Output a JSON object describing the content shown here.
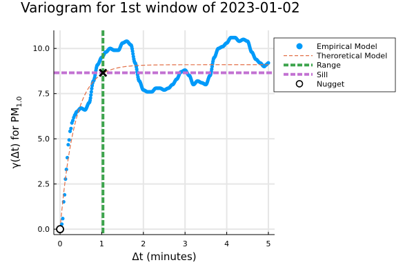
{
  "chart_data": {
    "type": "scatter",
    "title": "Variogram for 1st window of 2023-01-02",
    "xlabel": "Δt (minutes)",
    "ylabel_main": "γ(Δt) for PM",
    "ylabel_sub": "1.0",
    "xlim": [
      -0.15,
      5.15
    ],
    "ylim": [
      -0.3,
      11.0
    ],
    "xticks": [
      0,
      1,
      2,
      3,
      4,
      5
    ],
    "xtick_labels": [
      "0",
      "1",
      "2",
      "3",
      "4",
      "5"
    ],
    "yticks": [
      0.0,
      2.5,
      5.0,
      7.5,
      10.0
    ],
    "ytick_labels": [
      "0.0",
      "2.5",
      "5.0",
      "7.5",
      "10.0"
    ],
    "grid": true,
    "legend_position": "top-right outside",
    "colors": {
      "empirical": "#009af9",
      "theoretical": "#e26f46",
      "range": "#3da44d",
      "sill": "#c271d2",
      "nugget_edge": "#000000",
      "grid": "#e6e6e6",
      "axis": "#000000"
    },
    "empirical_anchors": [
      [
        0.0,
        0.0
      ],
      [
        0.05,
        0.3
      ],
      [
        0.1,
        1.8
      ],
      [
        0.15,
        3.3
      ],
      [
        0.2,
        4.7
      ],
      [
        0.25,
        5.5
      ],
      [
        0.3,
        6.0
      ],
      [
        0.35,
        6.3
      ],
      [
        0.4,
        6.5
      ],
      [
        0.5,
        6.7
      ],
      [
        0.6,
        6.6
      ],
      [
        0.7,
        7.0
      ],
      [
        0.8,
        8.2
      ],
      [
        0.9,
        9.1
      ],
      [
        1.0,
        9.5
      ],
      [
        1.1,
        9.8
      ],
      [
        1.2,
        10.0
      ],
      [
        1.3,
        9.9
      ],
      [
        1.4,
        9.9
      ],
      [
        1.5,
        10.3
      ],
      [
        1.6,
        10.4
      ],
      [
        1.7,
        10.2
      ],
      [
        1.8,
        9.2
      ],
      [
        1.9,
        8.2
      ],
      [
        2.0,
        7.7
      ],
      [
        2.1,
        7.6
      ],
      [
        2.2,
        7.6
      ],
      [
        2.3,
        7.8
      ],
      [
        2.4,
        7.8
      ],
      [
        2.5,
        7.7
      ],
      [
        2.6,
        7.8
      ],
      [
        2.7,
        8.0
      ],
      [
        2.8,
        8.3
      ],
      [
        2.9,
        8.7
      ],
      [
        3.0,
        8.8
      ],
      [
        3.1,
        8.5
      ],
      [
        3.2,
        8.0
      ],
      [
        3.3,
        8.2
      ],
      [
        3.4,
        8.1
      ],
      [
        3.5,
        8.0
      ],
      [
        3.6,
        8.5
      ],
      [
        3.7,
        9.5
      ],
      [
        3.8,
        10.0
      ],
      [
        3.9,
        10.1
      ],
      [
        4.0,
        10.3
      ],
      [
        4.1,
        10.6
      ],
      [
        4.2,
        10.6
      ],
      [
        4.3,
        10.4
      ],
      [
        4.4,
        10.5
      ],
      [
        4.5,
        10.4
      ],
      [
        4.6,
        9.8
      ],
      [
        4.7,
        9.4
      ],
      [
        4.8,
        9.2
      ],
      [
        4.9,
        9.0
      ],
      [
        4.95,
        9.1
      ],
      [
        5.0,
        9.2
      ]
    ],
    "theoretical_model": {
      "sill": 9.1,
      "scale": 0.35,
      "x_range": [
        0,
        5
      ]
    },
    "range_x": 1.03,
    "sill_y": 8.65,
    "nugget": [
      0,
      0
    ],
    "range_marker": [
      1.03,
      8.65
    ],
    "legend": [
      {
        "label": "Empirical Model",
        "key": "empirical",
        "symbol": "dot"
      },
      {
        "label": "Theroretical Model",
        "key": "theoretical",
        "symbol": "dash"
      },
      {
        "label": " Range",
        "key": "range",
        "symbol": "thickdash"
      },
      {
        "label": "Sill",
        "key": "sill",
        "symbol": "thickdash"
      },
      {
        "label": "Nugget",
        "key": "nugget_edge",
        "symbol": "ring"
      }
    ]
  }
}
